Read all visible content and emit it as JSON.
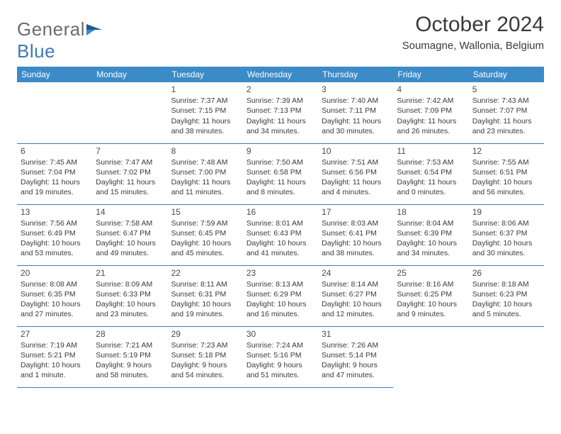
{
  "logo": {
    "text1": "General",
    "text2": "Blue"
  },
  "title": "October 2024",
  "location": "Soumagne, Wallonia, Belgium",
  "colors": {
    "header_bg": "#3b8bc9",
    "header_text": "#ffffff",
    "border": "#3b7ab8",
    "text": "#3a3a3a",
    "logo_gray": "#6b6b6b",
    "logo_blue": "#3b7ab8"
  },
  "weekdays": [
    "Sunday",
    "Monday",
    "Tuesday",
    "Wednesday",
    "Thursday",
    "Friday",
    "Saturday"
  ],
  "weeks": [
    [
      null,
      null,
      {
        "n": "1",
        "sr": "Sunrise: 7:37 AM",
        "ss": "Sunset: 7:15 PM",
        "dl": "Daylight: 11 hours and 38 minutes."
      },
      {
        "n": "2",
        "sr": "Sunrise: 7:39 AM",
        "ss": "Sunset: 7:13 PM",
        "dl": "Daylight: 11 hours and 34 minutes."
      },
      {
        "n": "3",
        "sr": "Sunrise: 7:40 AM",
        "ss": "Sunset: 7:11 PM",
        "dl": "Daylight: 11 hours and 30 minutes."
      },
      {
        "n": "4",
        "sr": "Sunrise: 7:42 AM",
        "ss": "Sunset: 7:09 PM",
        "dl": "Daylight: 11 hours and 26 minutes."
      },
      {
        "n": "5",
        "sr": "Sunrise: 7:43 AM",
        "ss": "Sunset: 7:07 PM",
        "dl": "Daylight: 11 hours and 23 minutes."
      }
    ],
    [
      {
        "n": "6",
        "sr": "Sunrise: 7:45 AM",
        "ss": "Sunset: 7:04 PM",
        "dl": "Daylight: 11 hours and 19 minutes."
      },
      {
        "n": "7",
        "sr": "Sunrise: 7:47 AM",
        "ss": "Sunset: 7:02 PM",
        "dl": "Daylight: 11 hours and 15 minutes."
      },
      {
        "n": "8",
        "sr": "Sunrise: 7:48 AM",
        "ss": "Sunset: 7:00 PM",
        "dl": "Daylight: 11 hours and 11 minutes."
      },
      {
        "n": "9",
        "sr": "Sunrise: 7:50 AM",
        "ss": "Sunset: 6:58 PM",
        "dl": "Daylight: 11 hours and 8 minutes."
      },
      {
        "n": "10",
        "sr": "Sunrise: 7:51 AM",
        "ss": "Sunset: 6:56 PM",
        "dl": "Daylight: 11 hours and 4 minutes."
      },
      {
        "n": "11",
        "sr": "Sunrise: 7:53 AM",
        "ss": "Sunset: 6:54 PM",
        "dl": "Daylight: 11 hours and 0 minutes."
      },
      {
        "n": "12",
        "sr": "Sunrise: 7:55 AM",
        "ss": "Sunset: 6:51 PM",
        "dl": "Daylight: 10 hours and 56 minutes."
      }
    ],
    [
      {
        "n": "13",
        "sr": "Sunrise: 7:56 AM",
        "ss": "Sunset: 6:49 PM",
        "dl": "Daylight: 10 hours and 53 minutes."
      },
      {
        "n": "14",
        "sr": "Sunrise: 7:58 AM",
        "ss": "Sunset: 6:47 PM",
        "dl": "Daylight: 10 hours and 49 minutes."
      },
      {
        "n": "15",
        "sr": "Sunrise: 7:59 AM",
        "ss": "Sunset: 6:45 PM",
        "dl": "Daylight: 10 hours and 45 minutes."
      },
      {
        "n": "16",
        "sr": "Sunrise: 8:01 AM",
        "ss": "Sunset: 6:43 PM",
        "dl": "Daylight: 10 hours and 41 minutes."
      },
      {
        "n": "17",
        "sr": "Sunrise: 8:03 AM",
        "ss": "Sunset: 6:41 PM",
        "dl": "Daylight: 10 hours and 38 minutes."
      },
      {
        "n": "18",
        "sr": "Sunrise: 8:04 AM",
        "ss": "Sunset: 6:39 PM",
        "dl": "Daylight: 10 hours and 34 minutes."
      },
      {
        "n": "19",
        "sr": "Sunrise: 8:06 AM",
        "ss": "Sunset: 6:37 PM",
        "dl": "Daylight: 10 hours and 30 minutes."
      }
    ],
    [
      {
        "n": "20",
        "sr": "Sunrise: 8:08 AM",
        "ss": "Sunset: 6:35 PM",
        "dl": "Daylight: 10 hours and 27 minutes."
      },
      {
        "n": "21",
        "sr": "Sunrise: 8:09 AM",
        "ss": "Sunset: 6:33 PM",
        "dl": "Daylight: 10 hours and 23 minutes."
      },
      {
        "n": "22",
        "sr": "Sunrise: 8:11 AM",
        "ss": "Sunset: 6:31 PM",
        "dl": "Daylight: 10 hours and 19 minutes."
      },
      {
        "n": "23",
        "sr": "Sunrise: 8:13 AM",
        "ss": "Sunset: 6:29 PM",
        "dl": "Daylight: 10 hours and 16 minutes."
      },
      {
        "n": "24",
        "sr": "Sunrise: 8:14 AM",
        "ss": "Sunset: 6:27 PM",
        "dl": "Daylight: 10 hours and 12 minutes."
      },
      {
        "n": "25",
        "sr": "Sunrise: 8:16 AM",
        "ss": "Sunset: 6:25 PM",
        "dl": "Daylight: 10 hours and 9 minutes."
      },
      {
        "n": "26",
        "sr": "Sunrise: 8:18 AM",
        "ss": "Sunset: 6:23 PM",
        "dl": "Daylight: 10 hours and 5 minutes."
      }
    ],
    [
      {
        "n": "27",
        "sr": "Sunrise: 7:19 AM",
        "ss": "Sunset: 5:21 PM",
        "dl": "Daylight: 10 hours and 1 minute."
      },
      {
        "n": "28",
        "sr": "Sunrise: 7:21 AM",
        "ss": "Sunset: 5:19 PM",
        "dl": "Daylight: 9 hours and 58 minutes."
      },
      {
        "n": "29",
        "sr": "Sunrise: 7:23 AM",
        "ss": "Sunset: 5:18 PM",
        "dl": "Daylight: 9 hours and 54 minutes."
      },
      {
        "n": "30",
        "sr": "Sunrise: 7:24 AM",
        "ss": "Sunset: 5:16 PM",
        "dl": "Daylight: 9 hours and 51 minutes."
      },
      {
        "n": "31",
        "sr": "Sunrise: 7:26 AM",
        "ss": "Sunset: 5:14 PM",
        "dl": "Daylight: 9 hours and 47 minutes."
      },
      null,
      null
    ]
  ]
}
